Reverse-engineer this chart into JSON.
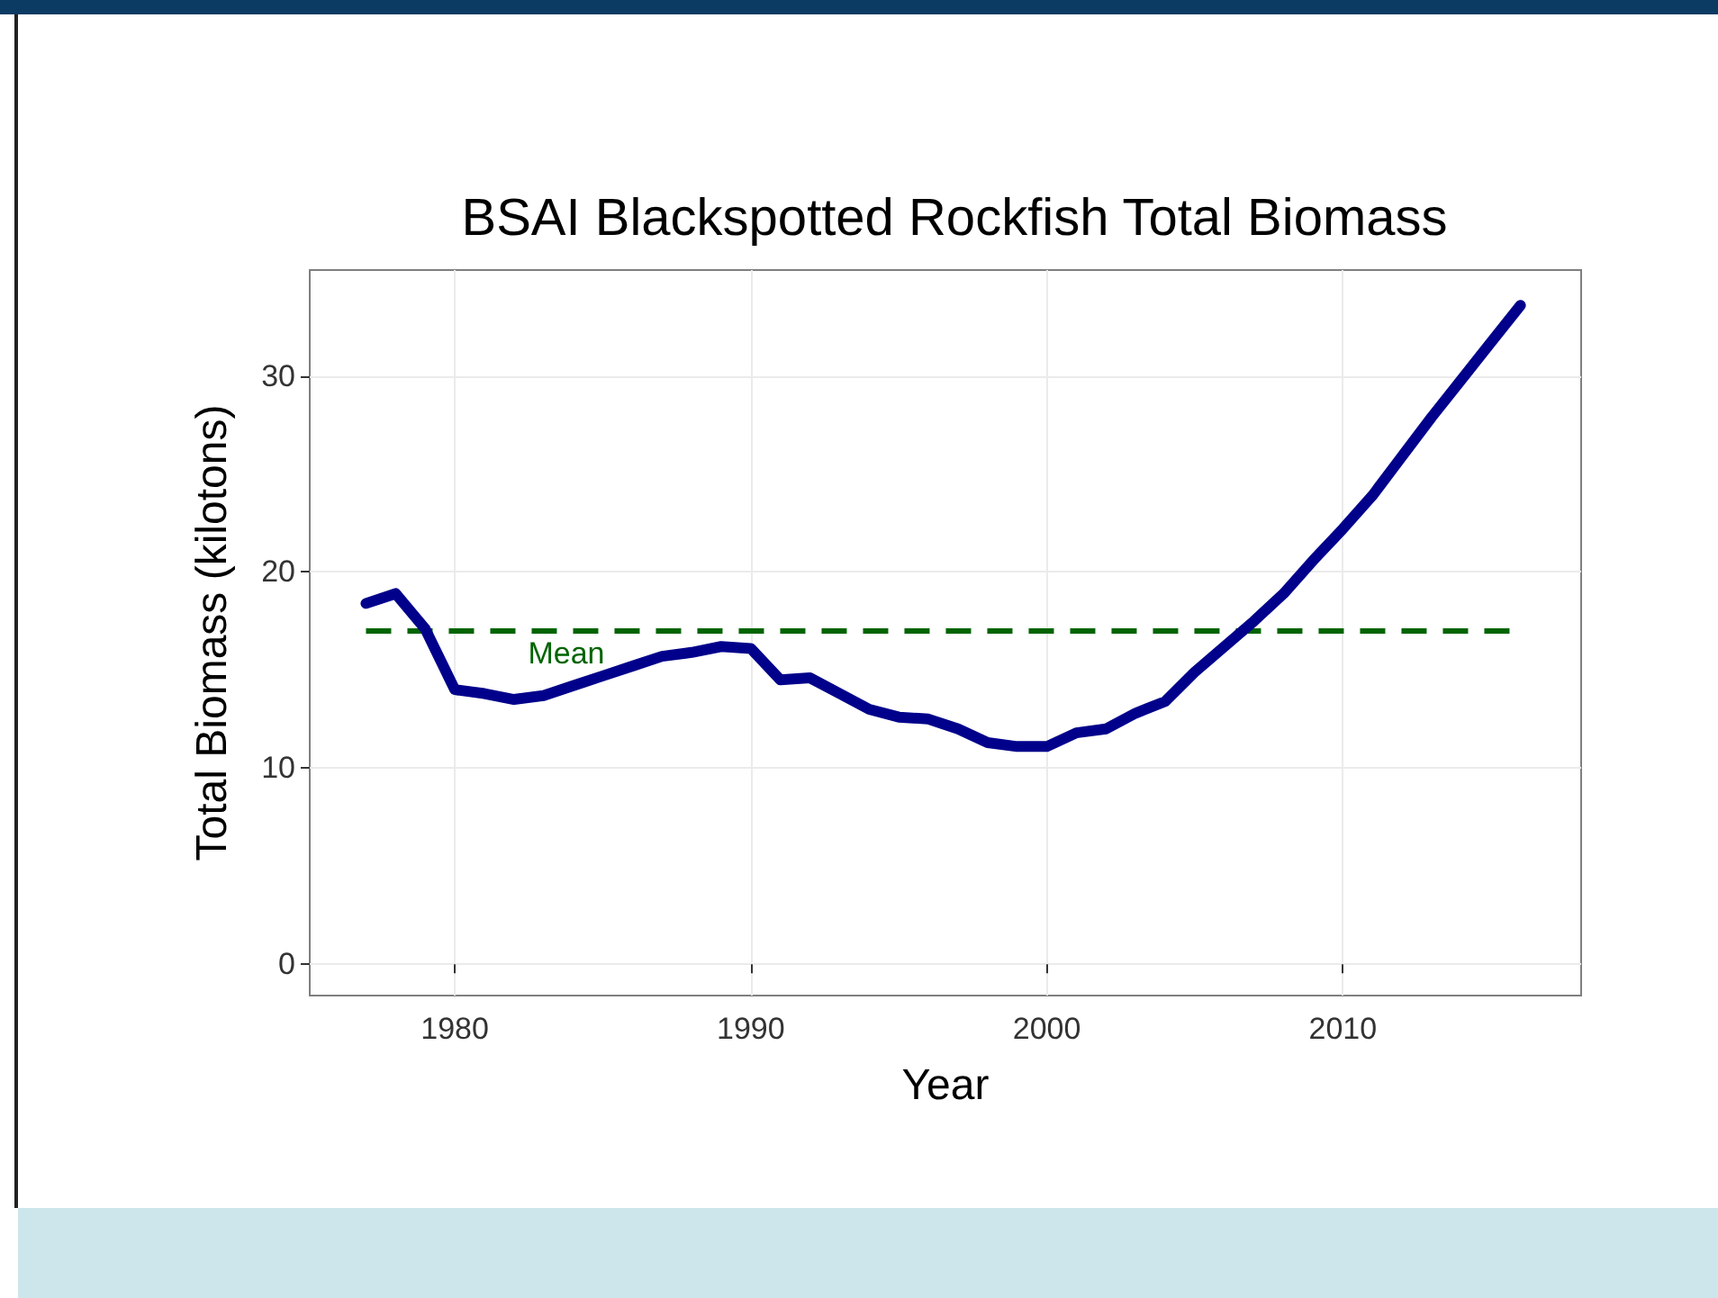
{
  "chart_data": {
    "type": "line",
    "title": "BSAI Blackspotted Rockfish Total Biomass",
    "xlabel": "Year",
    "ylabel": "Total Biomass (kilotons)",
    "x": [
      1977,
      1978,
      1979,
      1980,
      1981,
      1982,
      1983,
      1984,
      1985,
      1986,
      1987,
      1988,
      1989,
      1990,
      1991,
      1992,
      1993,
      1994,
      1995,
      1996,
      1997,
      1998,
      1999,
      2000,
      2001,
      2002,
      2003,
      2004,
      2005,
      2006,
      2007,
      2008,
      2009,
      2010,
      2011,
      2012,
      2013,
      2014,
      2015,
      2016
    ],
    "series": [
      {
        "color": "#00008b",
        "values": [
          18.4,
          18.9,
          17.1,
          14.0,
          13.8,
          13.5,
          13.7,
          14.2,
          14.7,
          15.2,
          15.7,
          15.9,
          16.2,
          16.1,
          14.5,
          14.6,
          13.8,
          13.0,
          12.6,
          12.5,
          12.0,
          11.3,
          11.1,
          11.1,
          11.8,
          12.0,
          12.8,
          13.4,
          14.9,
          16.2,
          17.5,
          18.9,
          20.6,
          22.2,
          23.9,
          25.9,
          27.9,
          29.8,
          31.7,
          33.6
        ]
      }
    ],
    "ref_lines": [
      {
        "axis": "y",
        "value": 17,
        "label": "Mean",
        "color": "#006400",
        "line_style": "dashed"
      }
    ],
    "xlim": [
      1975.1,
      2018.05
    ],
    "xticks": [
      1980,
      1990,
      2000,
      2010
    ],
    "ylim": [
      -1.6,
      35.4
    ],
    "yticks": [
      0,
      10,
      20,
      30
    ],
    "grid": true,
    "marker": "none",
    "line_style": "solid"
  }
}
